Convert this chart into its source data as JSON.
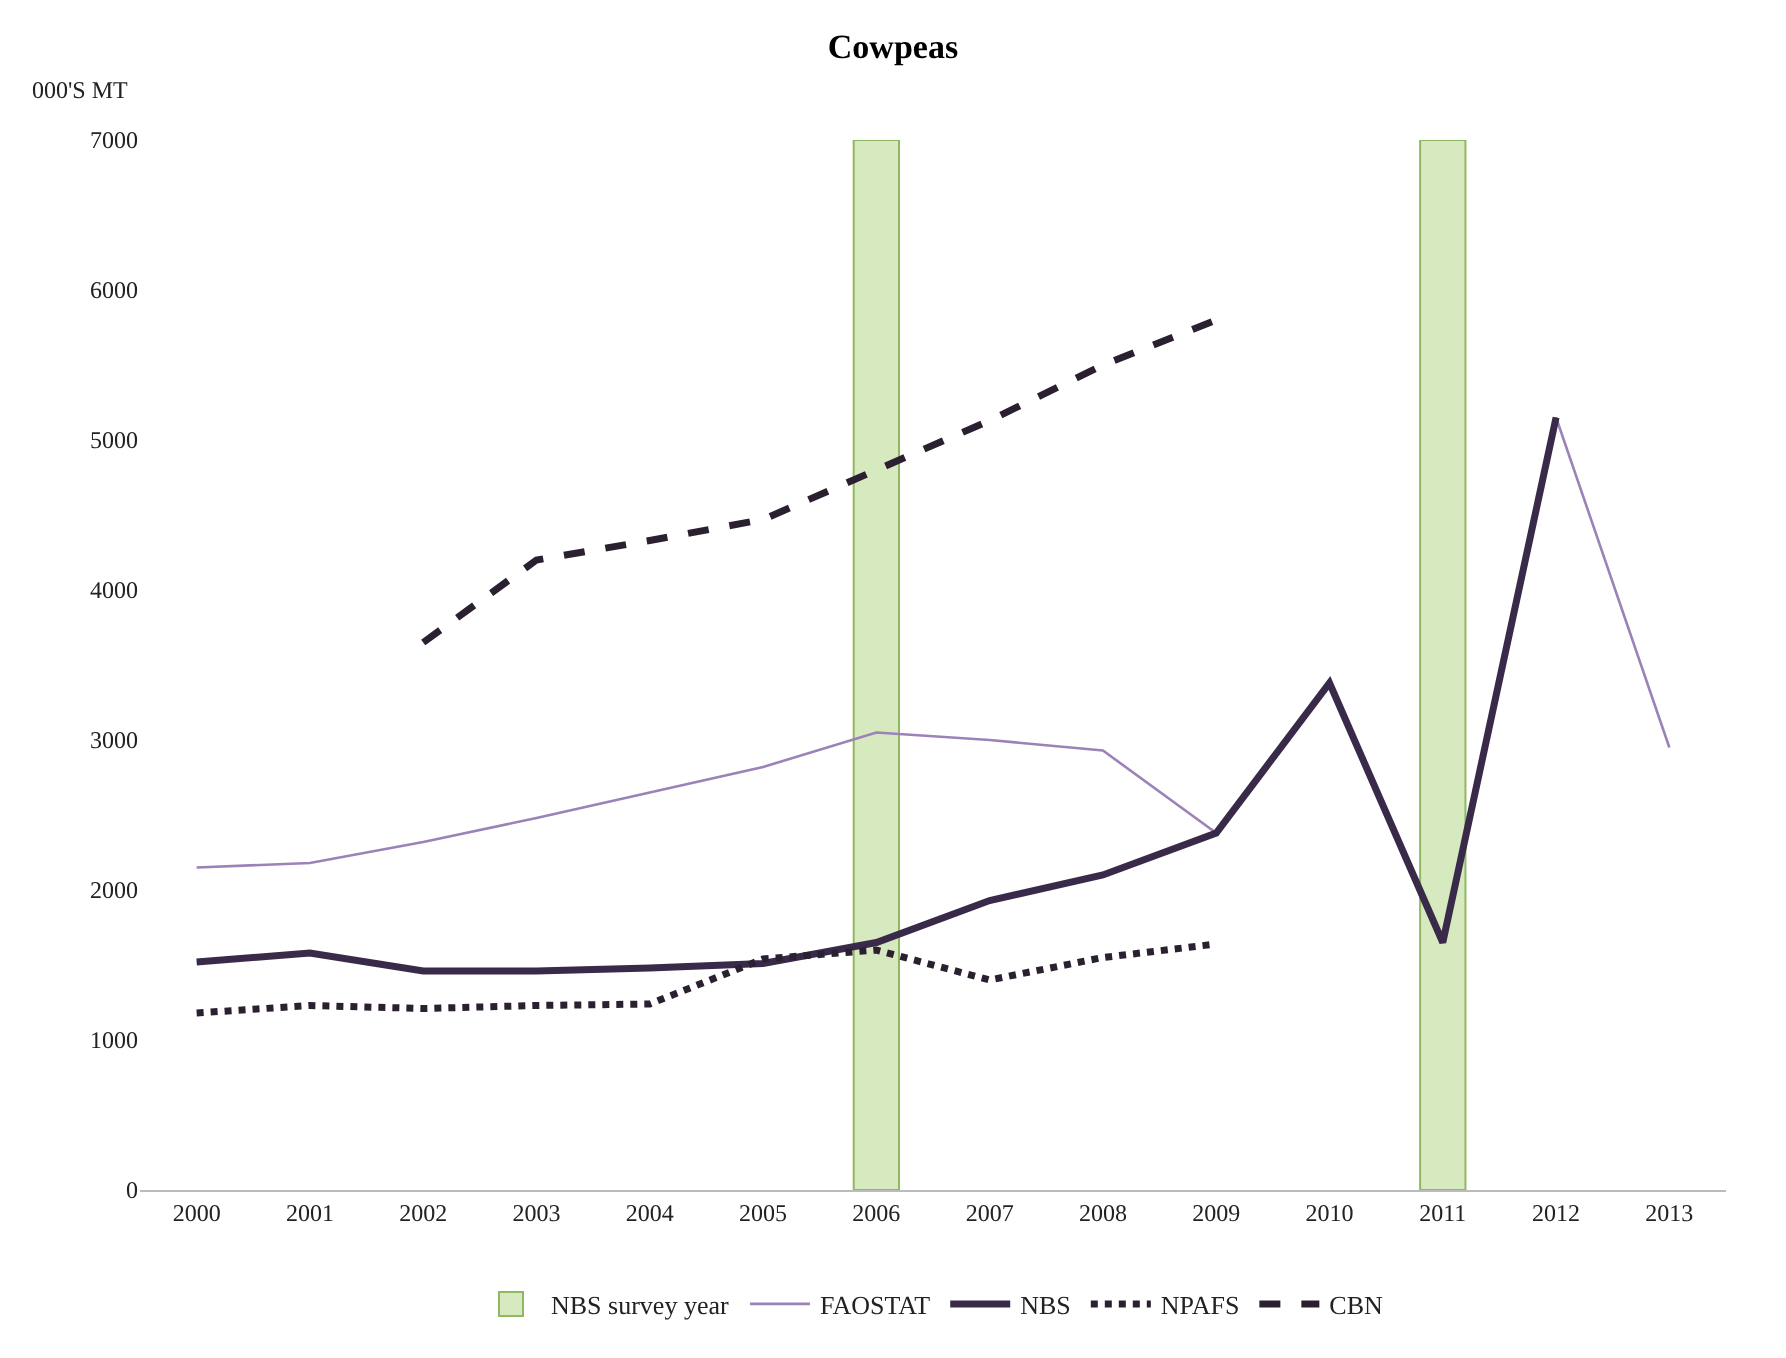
{
  "chart_data": {
    "type": "line",
    "title": "Cowpeas",
    "ylabel": "000'S MT",
    "categories": [
      "2000",
      "2001",
      "2002",
      "2003",
      "2004",
      "2005",
      "2006",
      "2007",
      "2008",
      "2009",
      "2010",
      "2011",
      "2012",
      "2013"
    ],
    "series": [
      {
        "name": "NBS survey year",
        "type": "bar",
        "color": "#d7eabf",
        "values": [
          null,
          null,
          null,
          null,
          null,
          null,
          7000,
          null,
          null,
          null,
          null,
          7000,
          null,
          null
        ]
      },
      {
        "name": "FAOSTAT",
        "color": "#9b82b8",
        "line_style": "solid",
        "values": [
          2150,
          2180,
          2320,
          2480,
          2650,
          2820,
          3050,
          3000,
          2930,
          2380,
          3380,
          1650,
          5150,
          2950
        ]
      },
      {
        "name": "NBS",
        "color": "#3a2a4a",
        "line_style": "solid",
        "values": [
          1520,
          1580,
          1460,
          1460,
          1480,
          1510,
          1650,
          1930,
          2100,
          2380,
          3380,
          1650,
          5150,
          null
        ]
      },
      {
        "name": "NPAFS",
        "color": "#2a2030",
        "line_style": "dotted",
        "values": [
          1180,
          1230,
          1210,
          1230,
          1240,
          1540,
          1600,
          1400,
          1550,
          1640,
          null,
          null,
          null,
          null
        ]
      },
      {
        "name": "CBN",
        "color": "#2a2030",
        "line_style": "dashed",
        "values": [
          null,
          null,
          3650,
          4200,
          4330,
          4470,
          4800,
          5130,
          5500,
          5800,
          null,
          null,
          null,
          null
        ]
      }
    ],
    "ylim": [
      0,
      7000
    ],
    "yticks": [
      0,
      1000,
      2000,
      3000,
      4000,
      5000,
      6000,
      7000
    ],
    "grid": false,
    "legend": "bottom",
    "marker": "none"
  }
}
